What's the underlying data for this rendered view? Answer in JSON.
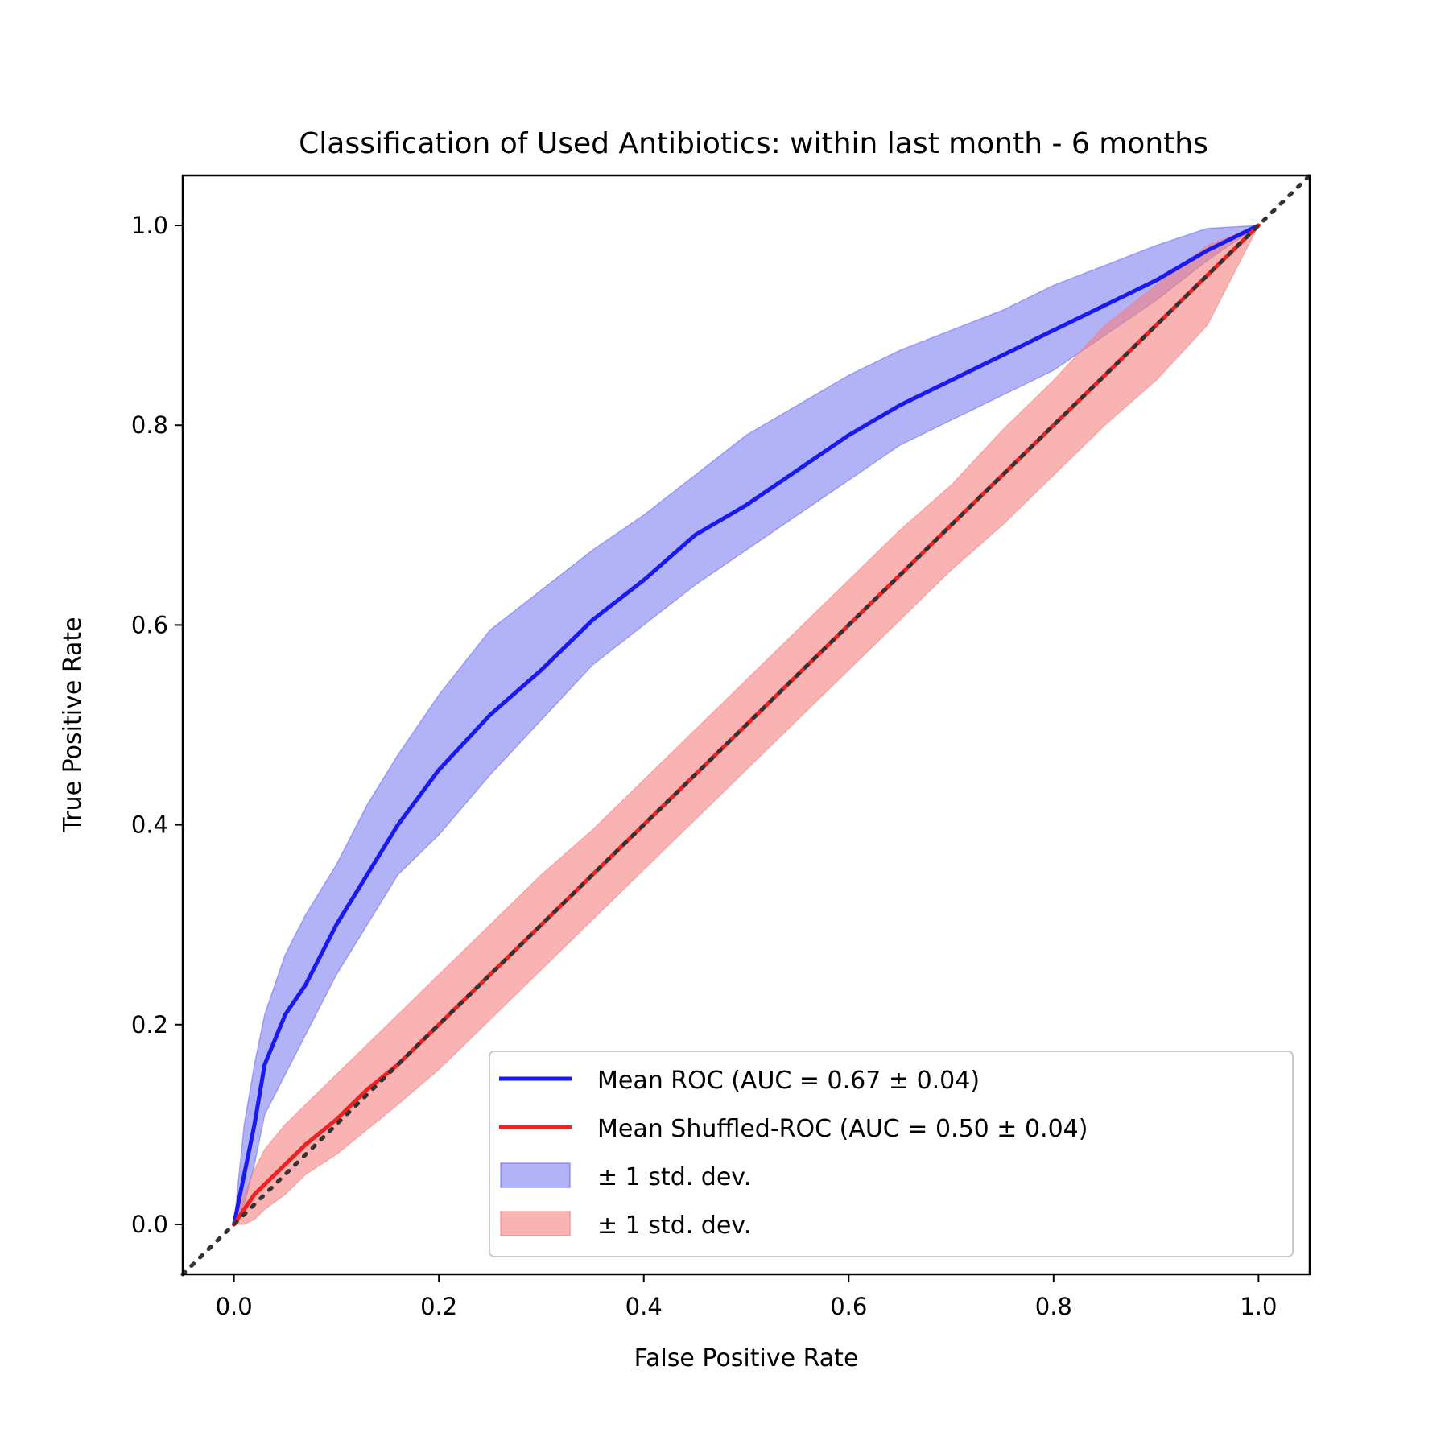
{
  "chart_data": {
    "type": "line",
    "title": "Classification of Used Antibiotics: within last month - 6 months",
    "xlabel": "False Positive Rate",
    "ylabel": "True Positive Rate",
    "xlim": [
      -0.05,
      1.05
    ],
    "ylim": [
      -0.05,
      1.05
    ],
    "xticks": [
      "0.0",
      "0.2",
      "0.4",
      "0.6",
      "0.8",
      "1.0"
    ],
    "yticks": [
      "0.0",
      "0.2",
      "0.4",
      "0.6",
      "0.8",
      "1.0"
    ],
    "grid": false,
    "legend_position": "lower-right",
    "x": [
      0.0,
      0.01,
      0.02,
      0.03,
      0.05,
      0.07,
      0.1,
      0.13,
      0.16,
      0.2,
      0.25,
      0.3,
      0.35,
      0.4,
      0.45,
      0.5,
      0.55,
      0.6,
      0.65,
      0.7,
      0.75,
      0.8,
      0.85,
      0.9,
      0.95,
      1.0
    ],
    "series": [
      {
        "name": "Mean ROC (AUC = 0.67 ± 0.04)",
        "color": "#1a1aee",
        "values": [
          0.0,
          0.05,
          0.1,
          0.16,
          0.21,
          0.24,
          0.3,
          0.35,
          0.4,
          0.455,
          0.51,
          0.555,
          0.605,
          0.645,
          0.69,
          0.72,
          0.755,
          0.79,
          0.82,
          0.845,
          0.87,
          0.895,
          0.92,
          0.945,
          0.975,
          1.0
        ]
      },
      {
        "name": "Mean Shuffled-ROC (AUC = 0.50 ± 0.04)",
        "color": "#ee2222",
        "values": [
          0.0,
          0.015,
          0.03,
          0.04,
          0.06,
          0.08,
          0.105,
          0.135,
          0.16,
          0.2,
          0.25,
          0.3,
          0.35,
          0.4,
          0.45,
          0.5,
          0.55,
          0.6,
          0.65,
          0.7,
          0.75,
          0.8,
          0.85,
          0.9,
          0.95,
          1.0
        ]
      }
    ],
    "bands": [
      {
        "name": "± 1 std. dev.",
        "color": "#6666ee",
        "lower": [
          0.0,
          0.02,
          0.06,
          0.11,
          0.15,
          0.19,
          0.25,
          0.3,
          0.35,
          0.39,
          0.45,
          0.505,
          0.56,
          0.6,
          0.64,
          0.675,
          0.71,
          0.745,
          0.78,
          0.805,
          0.83,
          0.855,
          0.89,
          0.925,
          0.965,
          1.0
        ],
        "upper": [
          0.0,
          0.1,
          0.16,
          0.21,
          0.27,
          0.31,
          0.36,
          0.42,
          0.47,
          0.53,
          0.595,
          0.635,
          0.675,
          0.71,
          0.75,
          0.79,
          0.82,
          0.85,
          0.875,
          0.895,
          0.915,
          0.94,
          0.96,
          0.98,
          0.997,
          1.0
        ]
      },
      {
        "name": "± 1 std. dev.",
        "color": "#f58080",
        "lower": [
          0.0,
          0.0,
          0.005,
          0.015,
          0.03,
          0.05,
          0.07,
          0.095,
          0.12,
          0.155,
          0.205,
          0.255,
          0.305,
          0.355,
          0.405,
          0.455,
          0.505,
          0.555,
          0.605,
          0.655,
          0.7,
          0.75,
          0.8,
          0.845,
          0.9,
          1.0
        ],
        "upper": [
          0.0,
          0.03,
          0.055,
          0.075,
          0.1,
          0.12,
          0.15,
          0.18,
          0.21,
          0.25,
          0.3,
          0.35,
          0.395,
          0.445,
          0.495,
          0.545,
          0.595,
          0.645,
          0.695,
          0.74,
          0.795,
          0.845,
          0.9,
          0.94,
          0.98,
          1.0
        ]
      }
    ],
    "reference_line": {
      "x": [
        -0.05,
        1.05
      ],
      "y": [
        -0.05,
        1.05
      ],
      "color": "#333333",
      "style": "dotted"
    }
  }
}
